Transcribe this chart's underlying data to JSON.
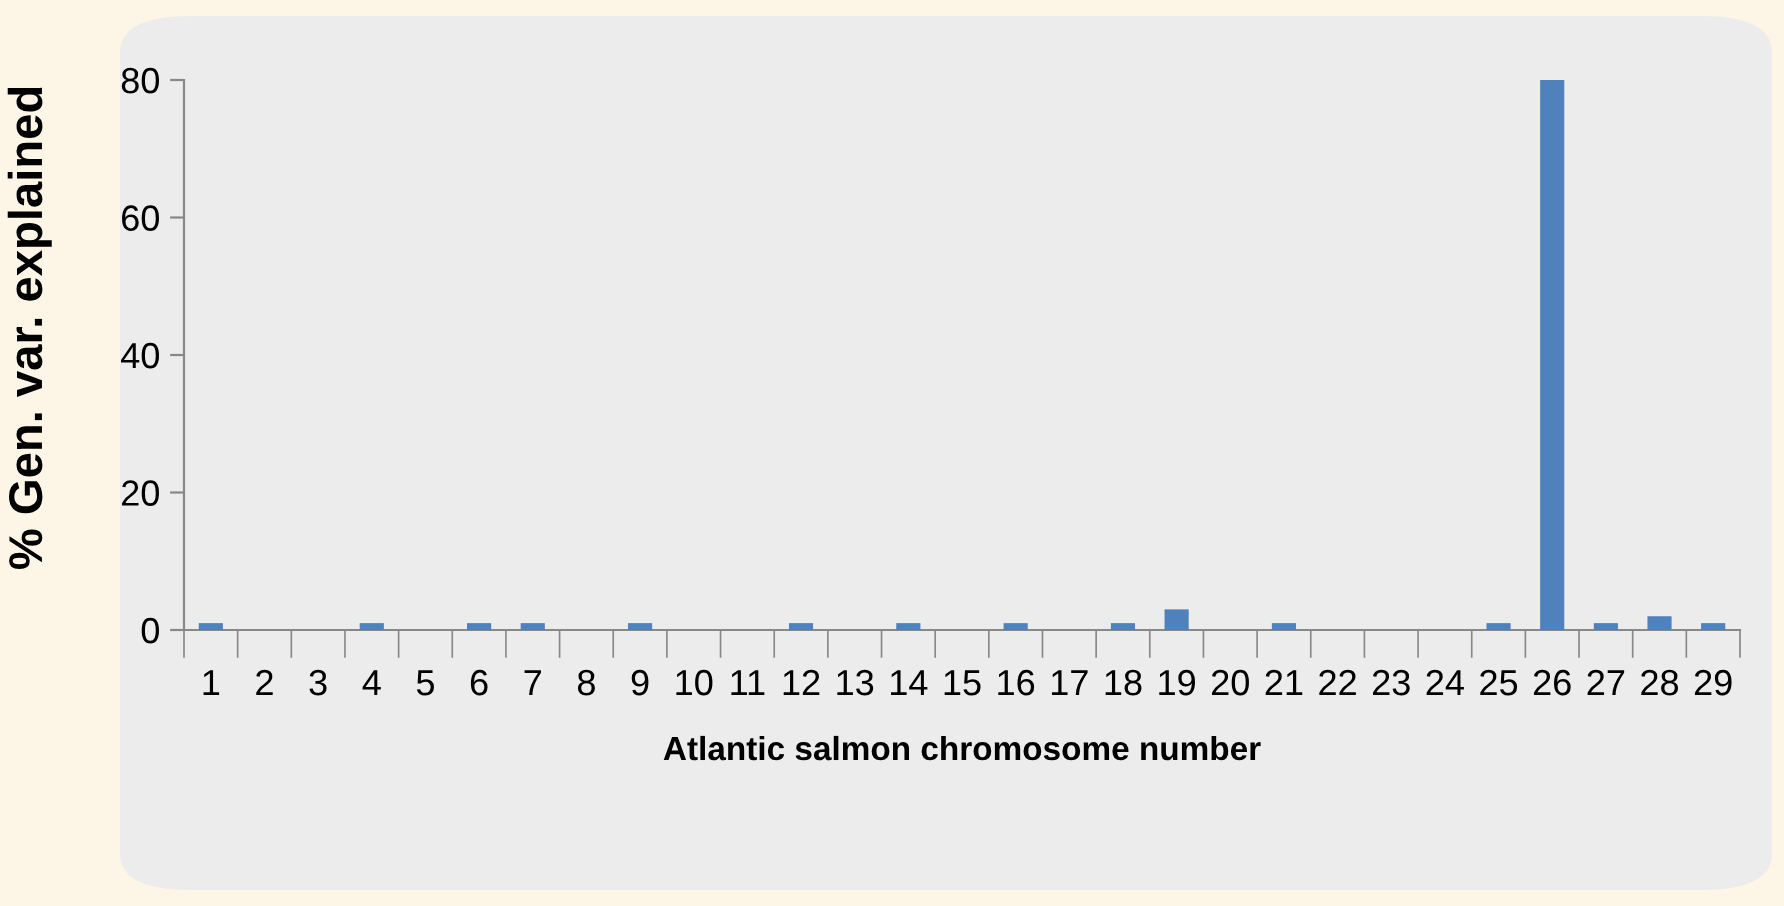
{
  "chart_data": {
    "type": "bar",
    "xlabel": "Atlantic salmon chromosome number",
    "ylabel": "% Gen. var. explained",
    "categories": [
      "1",
      "2",
      "3",
      "4",
      "5",
      "6",
      "7",
      "8",
      "9",
      "10",
      "11",
      "12",
      "13",
      "14",
      "15",
      "16",
      "17",
      "18",
      "19",
      "20",
      "21",
      "22",
      "23",
      "24",
      "25",
      "26",
      "27",
      "28",
      "29"
    ],
    "values": [
      1,
      0,
      0,
      1,
      0,
      1,
      1,
      0,
      1,
      0,
      0,
      1,
      0,
      1,
      0,
      1,
      0,
      1,
      3,
      0,
      1,
      0,
      0,
      0,
      1,
      80,
      1,
      2,
      1
    ],
    "color": "#4f81bd",
    "ylim": [
      0,
      80
    ],
    "yticks": [
      0,
      20,
      40,
      60,
      80
    ],
    "grid": false,
    "legend": false
  }
}
